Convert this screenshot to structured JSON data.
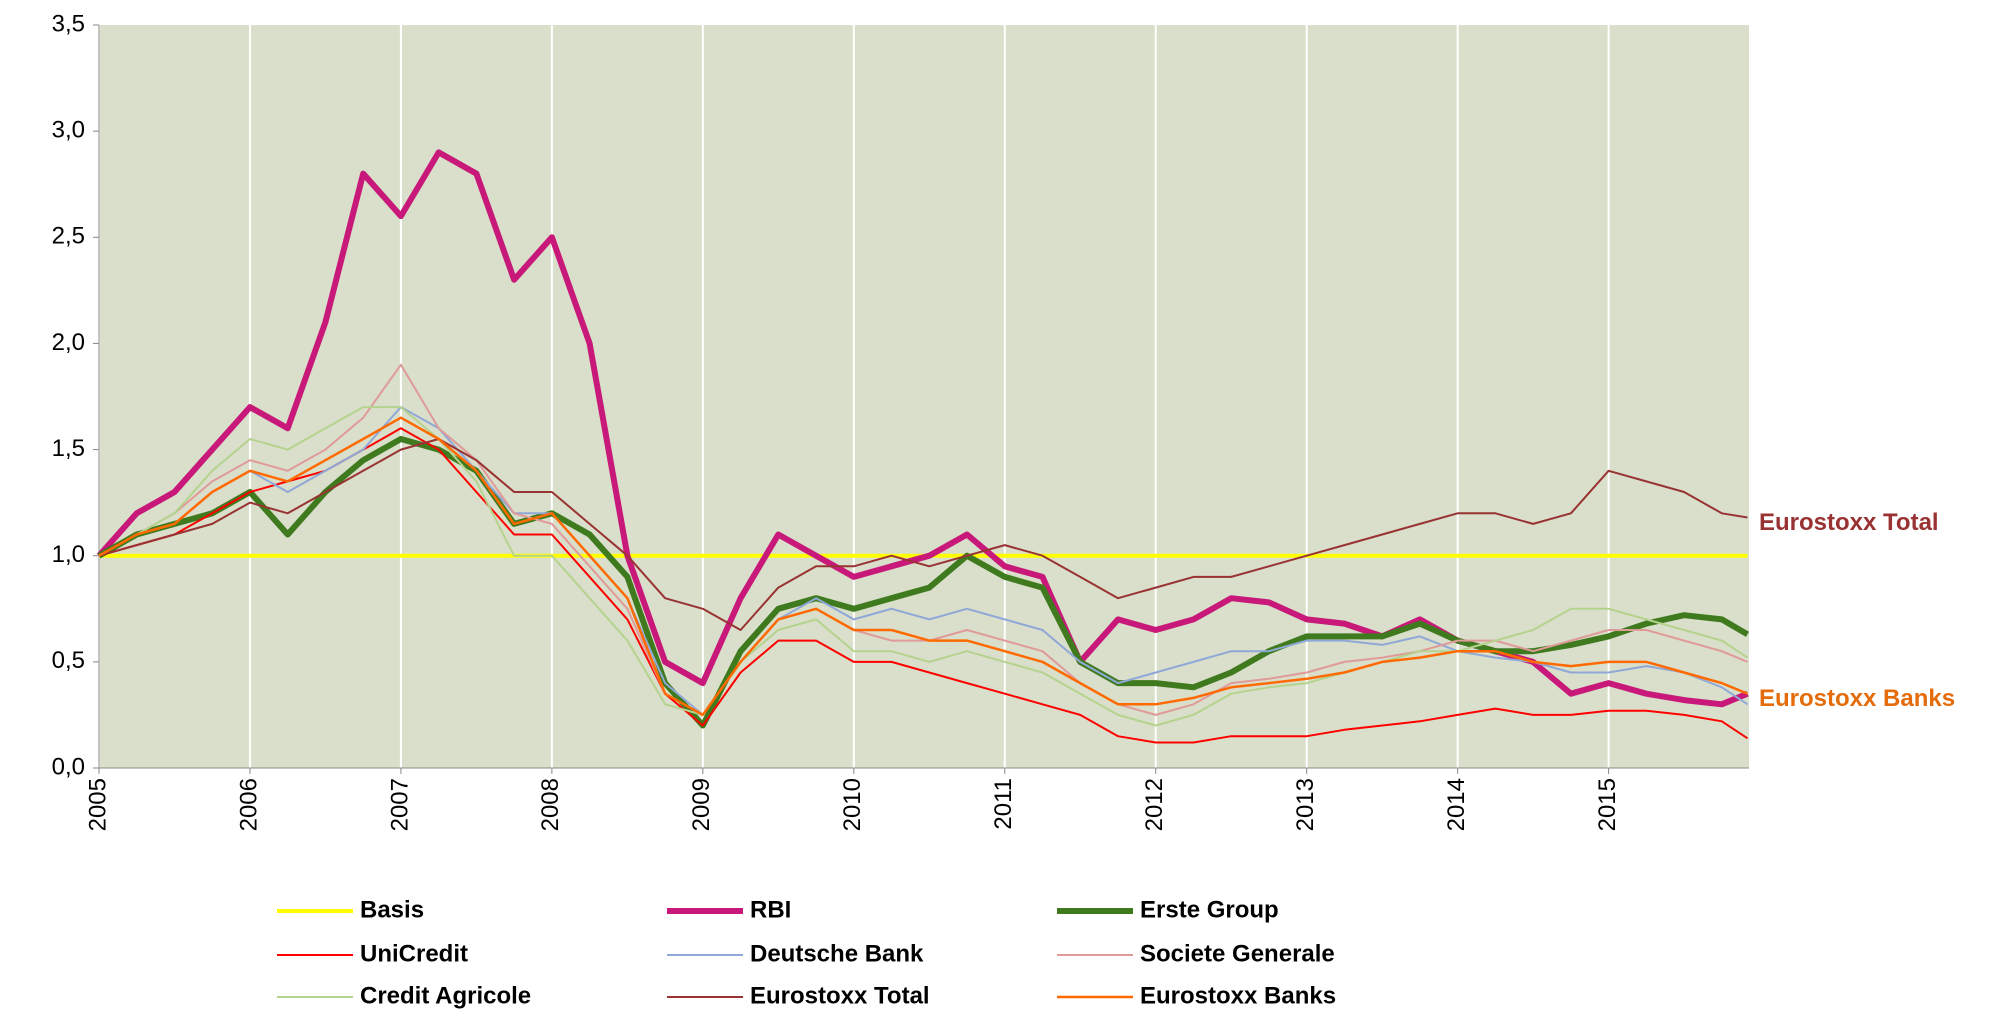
{
  "chart_data": {
    "type": "line",
    "x": [
      2005,
      2005.25,
      2005.5,
      2005.75,
      2006,
      2006.25,
      2006.5,
      2006.75,
      2007,
      2007.25,
      2007.5,
      2007.75,
      2008,
      2008.25,
      2008.5,
      2008.75,
      2009,
      2009.25,
      2009.5,
      2009.75,
      2010,
      2010.25,
      2010.5,
      2010.75,
      2011,
      2011.25,
      2011.5,
      2011.75,
      2012,
      2012.25,
      2012.5,
      2012.75,
      2013,
      2013.25,
      2013.5,
      2013.75,
      2014,
      2014.25,
      2014.5,
      2014.75,
      2015,
      2015.25,
      2015.5,
      2015.75,
      2015.92
    ],
    "xlim": [
      2005,
      2015.93
    ],
    "xticks": [
      2005,
      2006,
      2007,
      2008,
      2009,
      2010,
      2011,
      2012,
      2013,
      2014,
      2015
    ],
    "ylim": [
      0,
      3.5
    ],
    "yticks": [
      {
        "value": 0,
        "label": "0,0"
      },
      {
        "value": 0.5,
        "label": "0,5"
      },
      {
        "value": 1,
        "label": "1,0"
      },
      {
        "value": 1.5,
        "label": "1,5"
      },
      {
        "value": 2,
        "label": "2,0"
      },
      {
        "value": 2.5,
        "label": "2,5"
      },
      {
        "value": 3,
        "label": "3,0"
      },
      {
        "value": 3.5,
        "label": "3,5"
      }
    ],
    "grid": "x",
    "background": "#d9dfca",
    "series": [
      {
        "name": "Basis",
        "color": "#ffff00",
        "line_width": 4,
        "values": [
          1,
          1,
          1,
          1,
          1,
          1,
          1,
          1,
          1,
          1,
          1,
          1,
          1,
          1,
          1,
          1,
          1,
          1,
          1,
          1,
          1,
          1,
          1,
          1,
          1,
          1,
          1,
          1,
          1,
          1,
          1,
          1,
          1,
          1,
          1,
          1,
          1,
          1,
          1,
          1,
          1,
          1,
          1,
          1,
          1
        ]
      },
      {
        "name": "RBI",
        "color": "#c8197a",
        "line_width": 6,
        "values": [
          1.0,
          1.2,
          1.3,
          1.5,
          1.7,
          1.6,
          2.1,
          2.8,
          2.6,
          2.9,
          2.8,
          2.3,
          2.5,
          2.0,
          1.0,
          0.5,
          0.4,
          0.8,
          1.1,
          1.0,
          0.9,
          0.95,
          1.0,
          1.1,
          0.95,
          0.9,
          0.5,
          0.7,
          0.65,
          0.7,
          0.8,
          0.78,
          0.7,
          0.68,
          0.62,
          0.7,
          0.6,
          0.55,
          0.5,
          0.35,
          0.4,
          0.35,
          0.32,
          0.3,
          0.35
        ]
      },
      {
        "name": "Erste Group",
        "color": "#3f7a1e",
        "line_width": 6,
        "values": [
          1.0,
          1.1,
          1.15,
          1.2,
          1.3,
          1.1,
          1.3,
          1.45,
          1.55,
          1.5,
          1.4,
          1.15,
          1.2,
          1.1,
          0.9,
          0.4,
          0.2,
          0.55,
          0.75,
          0.8,
          0.75,
          0.8,
          0.85,
          1.0,
          0.9,
          0.85,
          0.5,
          0.4,
          0.4,
          0.38,
          0.45,
          0.55,
          0.62,
          0.62,
          0.62,
          0.68,
          0.6,
          0.55,
          0.55,
          0.58,
          0.62,
          0.68,
          0.72,
          0.7,
          0.63
        ]
      },
      {
        "name": "UniCredit",
        "color": "#ff0000",
        "line_width": 2,
        "values": [
          1.0,
          1.05,
          1.1,
          1.2,
          1.3,
          1.35,
          1.4,
          1.5,
          1.6,
          1.5,
          1.3,
          1.1,
          1.1,
          0.9,
          0.7,
          0.35,
          0.2,
          0.45,
          0.6,
          0.6,
          0.5,
          0.5,
          0.45,
          0.4,
          0.35,
          0.3,
          0.25,
          0.15,
          0.12,
          0.12,
          0.15,
          0.15,
          0.15,
          0.18,
          0.2,
          0.22,
          0.25,
          0.28,
          0.25,
          0.25,
          0.27,
          0.27,
          0.25,
          0.22,
          0.14
        ]
      },
      {
        "name": "Deutsche Bank",
        "color": "#8fa8d8",
        "line_width": 2,
        "values": [
          1.0,
          1.1,
          1.15,
          1.3,
          1.4,
          1.3,
          1.4,
          1.5,
          1.7,
          1.6,
          1.4,
          1.2,
          1.2,
          1.0,
          0.8,
          0.4,
          0.25,
          0.5,
          0.7,
          0.8,
          0.7,
          0.75,
          0.7,
          0.75,
          0.7,
          0.65,
          0.5,
          0.4,
          0.45,
          0.5,
          0.55,
          0.55,
          0.6,
          0.6,
          0.58,
          0.62,
          0.55,
          0.52,
          0.5,
          0.45,
          0.45,
          0.48,
          0.45,
          0.38,
          0.3
        ]
      },
      {
        "name": "Societe Generale",
        "color": "#e09a9a",
        "line_width": 2,
        "values": [
          1.0,
          1.1,
          1.2,
          1.35,
          1.45,
          1.4,
          1.5,
          1.65,
          1.9,
          1.6,
          1.45,
          1.2,
          1.15,
          0.95,
          0.75,
          0.35,
          0.25,
          0.5,
          0.7,
          0.75,
          0.65,
          0.6,
          0.6,
          0.65,
          0.6,
          0.55,
          0.4,
          0.3,
          0.25,
          0.3,
          0.4,
          0.42,
          0.45,
          0.5,
          0.52,
          0.55,
          0.6,
          0.6,
          0.55,
          0.6,
          0.65,
          0.65,
          0.6,
          0.55,
          0.5
        ]
      },
      {
        "name": "Credit Agricole",
        "color": "#b5d38e",
        "line_width": 2,
        "values": [
          1.0,
          1.1,
          1.2,
          1.4,
          1.55,
          1.5,
          1.6,
          1.7,
          1.7,
          1.55,
          1.35,
          1.0,
          1.0,
          0.8,
          0.6,
          0.3,
          0.25,
          0.5,
          0.65,
          0.7,
          0.55,
          0.55,
          0.5,
          0.55,
          0.5,
          0.45,
          0.35,
          0.25,
          0.2,
          0.25,
          0.35,
          0.38,
          0.4,
          0.45,
          0.5,
          0.55,
          0.55,
          0.6,
          0.65,
          0.75,
          0.75,
          0.7,
          0.65,
          0.6,
          0.52
        ]
      },
      {
        "name": "Eurostoxx Total",
        "color": "#993333",
        "line_width": 2,
        "values": [
          1.0,
          1.05,
          1.1,
          1.15,
          1.25,
          1.2,
          1.3,
          1.4,
          1.5,
          1.55,
          1.45,
          1.3,
          1.3,
          1.15,
          1.0,
          0.8,
          0.75,
          0.65,
          0.85,
          0.95,
          0.95,
          1.0,
          0.95,
          1.0,
          1.05,
          1.0,
          0.9,
          0.8,
          0.85,
          0.9,
          0.9,
          0.95,
          1.0,
          1.05,
          1.1,
          1.15,
          1.2,
          1.2,
          1.15,
          1.2,
          1.4,
          1.35,
          1.3,
          1.2,
          1.18
        ]
      },
      {
        "name": "Eurostoxx Banks",
        "color": "#ff6a00",
        "line_width": 2.5,
        "values": [
          1.0,
          1.1,
          1.15,
          1.3,
          1.4,
          1.35,
          1.45,
          1.55,
          1.65,
          1.55,
          1.4,
          1.15,
          1.2,
          1.0,
          0.8,
          0.35,
          0.25,
          0.5,
          0.7,
          0.75,
          0.65,
          0.65,
          0.6,
          0.6,
          0.55,
          0.5,
          0.4,
          0.3,
          0.3,
          0.33,
          0.38,
          0.4,
          0.42,
          0.45,
          0.5,
          0.52,
          0.55,
          0.55,
          0.5,
          0.48,
          0.5,
          0.5,
          0.45,
          0.4,
          0.35
        ]
      }
    ],
    "annotations": [
      {
        "text": "Eurostoxx Total",
        "color": "#993333"
      },
      {
        "text": "Eurostoxx Banks",
        "color": "#e46c0a"
      }
    ]
  }
}
